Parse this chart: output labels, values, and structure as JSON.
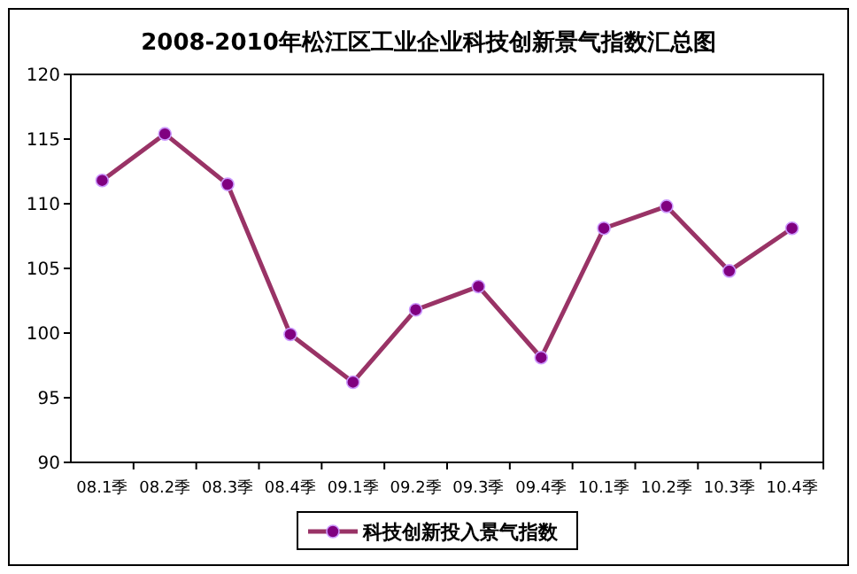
{
  "chart_data": {
    "type": "line",
    "title": "2008-2010年松江区工业企业科技创新景气指数汇总图",
    "categories": [
      "08.1季",
      "08.2季",
      "08.3季",
      "08.4季",
      "09.1季",
      "09.2季",
      "09.3季",
      "09.4季",
      "10.1季",
      "10.2季",
      "10.3季",
      "10.4季"
    ],
    "series": [
      {
        "name": "科技创新投入景气指数",
        "color": "#993366",
        "values": [
          111.8,
          115.4,
          111.5,
          99.9,
          96.2,
          101.8,
          103.6,
          98.1,
          108.1,
          109.8,
          104.8,
          108.1
        ]
      }
    ],
    "ylim": [
      90,
      120
    ],
    "yticks": [
      90,
      95,
      100,
      105,
      110,
      115,
      120
    ],
    "legend": "bottom",
    "marker": "circle",
    "grid": false
  }
}
